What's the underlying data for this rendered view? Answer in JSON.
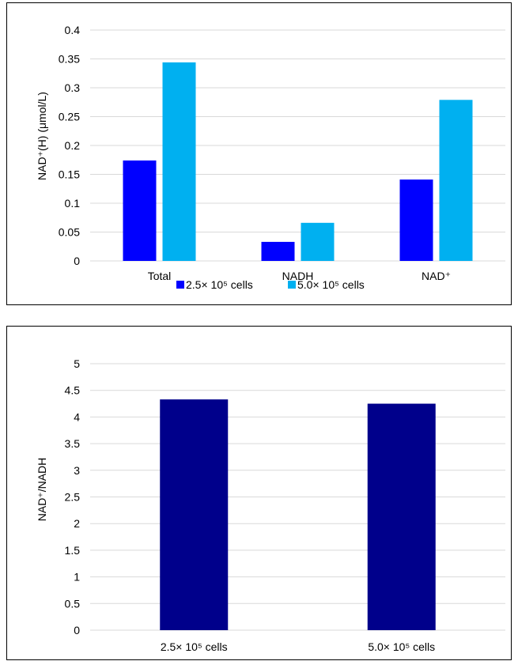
{
  "chart_data": [
    {
      "type": "bar",
      "ylabel": "NAD⁺(H) (μmol/L)",
      "categories": [
        "Total",
        "NADH",
        "NAD⁺"
      ],
      "yticks": [
        "0",
        "0.05",
        "0.1",
        "0.15",
        "0.2",
        "0.25",
        "0.3",
        "0.35",
        "0.4"
      ],
      "ylim": [
        0,
        0.4
      ],
      "grid": true,
      "legend_position": "bottom",
      "series": [
        {
          "name": "2.5× 10⁵ cells",
          "color": "#0000ff",
          "values": [
            0.174,
            0.033,
            0.141
          ]
        },
        {
          "name": "5.0× 10⁵ cells",
          "color": "#00b0f0",
          "values": [
            0.344,
            0.066,
            0.279
          ]
        }
      ]
    },
    {
      "type": "bar",
      "ylabel": "NAD⁺/NADH",
      "categories": [
        "2.5× 10⁵ cells",
        "5.0× 10⁵ cells"
      ],
      "yticks": [
        "0",
        "0.5",
        "1",
        "1.5",
        "2",
        "2.5",
        "3",
        "3.5",
        "4",
        "4.5",
        "5"
      ],
      "ylim": [
        0,
        5
      ],
      "grid": true,
      "series": [
        {
          "color": "#00008b",
          "values": [
            4.33,
            4.25
          ]
        }
      ]
    }
  ]
}
